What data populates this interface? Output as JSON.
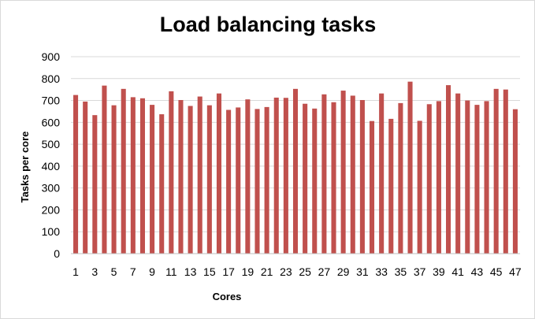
{
  "chart_data": {
    "type": "bar",
    "title": "Load balancing tasks",
    "xlabel": "Cores",
    "ylabel": "Tasks per core",
    "ylim": [
      0,
      900
    ],
    "yticks": [
      "0",
      "100",
      "200",
      "300",
      "400",
      "500",
      "600",
      "700",
      "800",
      "900"
    ],
    "grid": "horizontal",
    "legend": "none",
    "bar_color": "#c0504d",
    "categories": [
      "1",
      "2",
      "3",
      "4",
      "5",
      "6",
      "7",
      "8",
      "9",
      "10",
      "11",
      "12",
      "13",
      "14",
      "15",
      "16",
      "17",
      "18",
      "19",
      "20",
      "21",
      "22",
      "23",
      "24",
      "25",
      "26",
      "27",
      "28",
      "29",
      "30",
      "31",
      "32",
      "33",
      "34",
      "35",
      "36",
      "37",
      "38",
      "39",
      "40",
      "41",
      "42",
      "43",
      "44",
      "45",
      "46",
      "47"
    ],
    "category_labels": [
      "1",
      "",
      "3",
      "",
      "5",
      "",
      "7",
      "",
      "9",
      "",
      "11",
      "",
      "13",
      "",
      "15",
      "",
      "17",
      "",
      "19",
      "",
      "21",
      "",
      "23",
      "",
      "25",
      "",
      "27",
      "",
      "29",
      "",
      "31",
      "",
      "33",
      "",
      "35",
      "",
      "37",
      "",
      "39",
      "",
      "41",
      "",
      "43",
      "",
      "45",
      "",
      "47"
    ],
    "values": [
      725,
      695,
      633,
      768,
      678,
      753,
      715,
      710,
      680,
      637,
      742,
      702,
      675,
      718,
      678,
      732,
      657,
      668,
      705,
      661,
      670,
      713,
      712,
      753,
      685,
      663,
      728,
      692,
      745,
      722,
      702,
      606,
      732,
      616,
      688,
      786,
      607,
      683,
      697,
      770,
      732,
      700,
      680,
      697,
      753,
      750,
      660
    ]
  }
}
